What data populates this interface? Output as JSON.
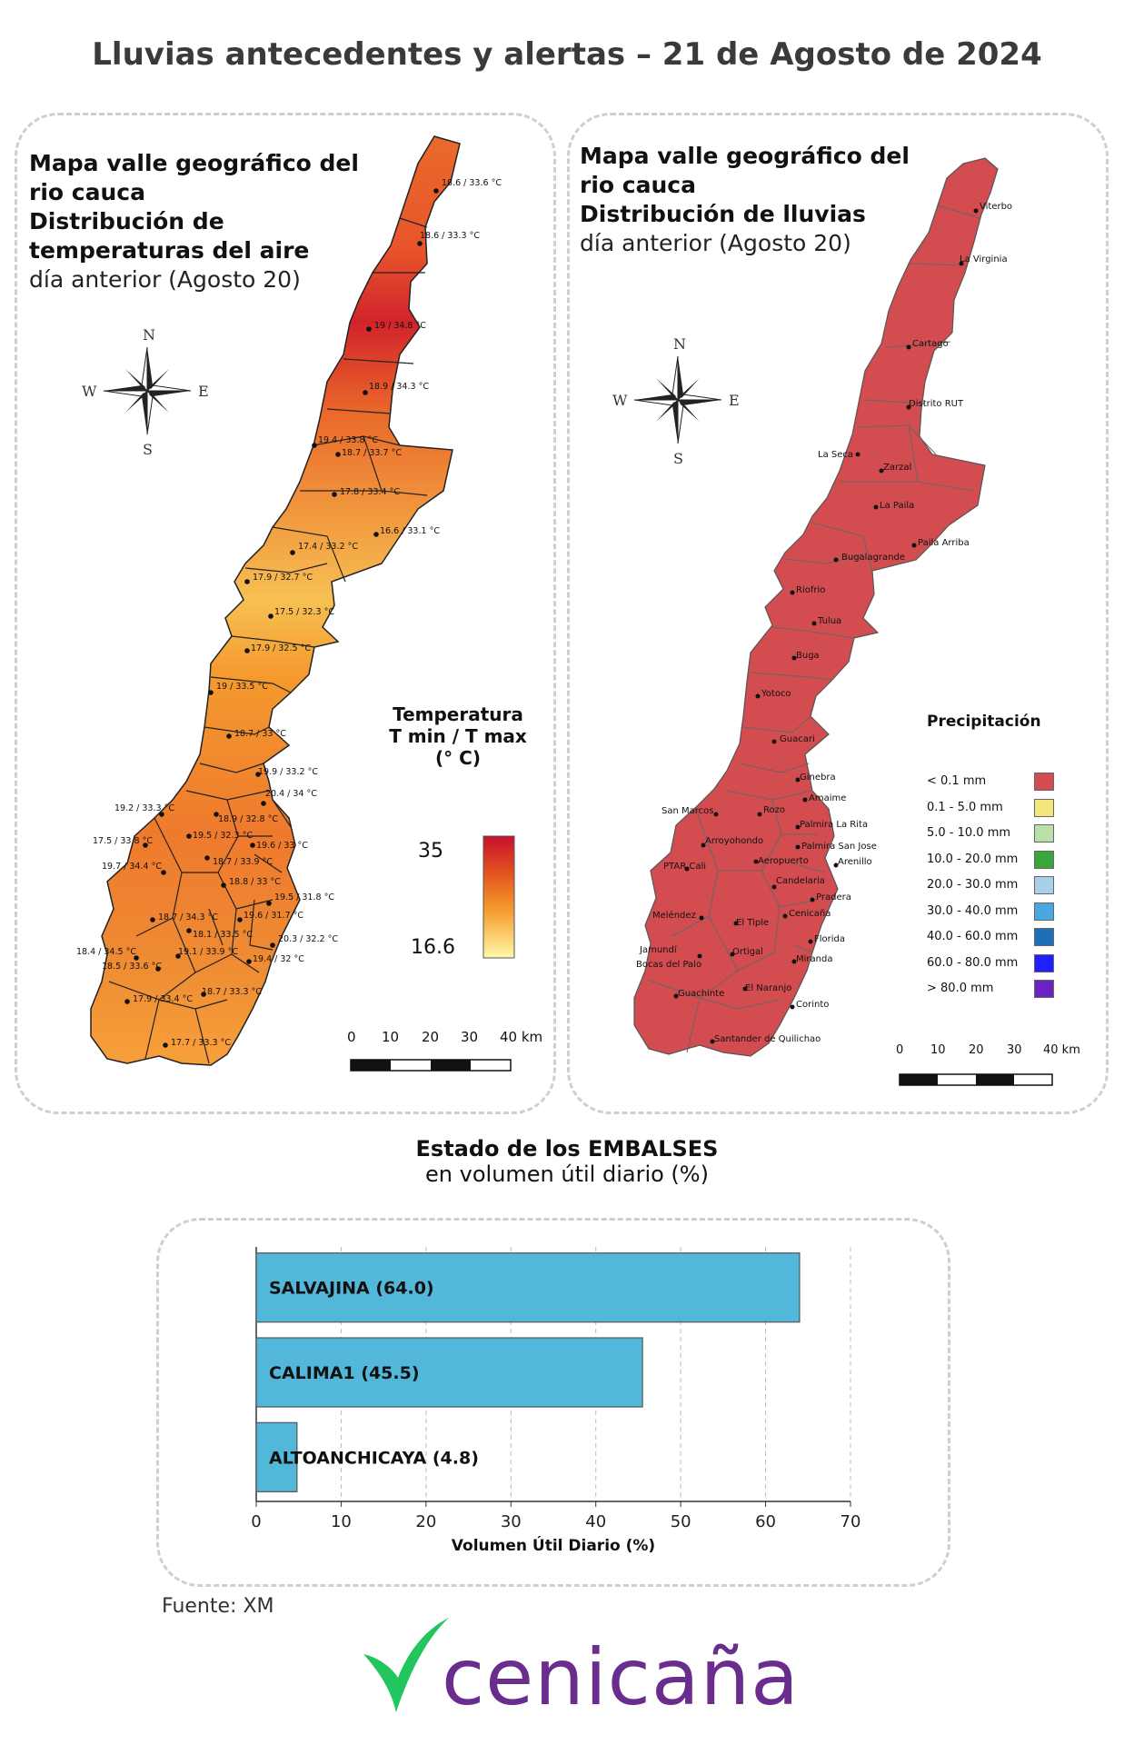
{
  "title": "Lluvias antecedentes y alertas – 21 de Agosto de 2024",
  "temperature_map": {
    "title_line1": "Mapa valle geográfico del",
    "title_line2": "rio cauca",
    "title_bold1": "Distribución de",
    "title_bold2": "temperaturas del aire",
    "subtitle": "día anterior (Agosto 20)",
    "compass": {
      "n": "N",
      "s": "S",
      "e": "E",
      "w": "W"
    },
    "legend": {
      "title1": "Temperatura",
      "title2": "T min / T max",
      "title3": "(° C)",
      "max": "35",
      "min": "16.6",
      "color_high": "#c8102e",
      "color_low": "#fff7a8"
    },
    "scale": {
      "labels": [
        "0",
        "10",
        "20",
        "30",
        "40 km"
      ]
    },
    "stations": [
      {
        "label": "18.6 / 33.6 °C"
      },
      {
        "label": "18.6 / 33.3 °C"
      },
      {
        "label": "19 / 34.8 °C"
      },
      {
        "label": "18.9 / 34.3 °C"
      },
      {
        "label": "19.4 / 33.8 °C"
      },
      {
        "label": "18.7 / 33.7 °C"
      },
      {
        "label": "17.8 / 33.4 °C"
      },
      {
        "label": "16.6 / 33.1 °C"
      },
      {
        "label": "17.4 / 33.2 °C"
      },
      {
        "label": "17.9 / 32.7 °C"
      },
      {
        "label": "17.5 / 32.3 °C"
      },
      {
        "label": "17.9 / 32.5 °C"
      },
      {
        "label": "19 / 33.5 °C"
      },
      {
        "label": "18.7 / 33 °C"
      },
      {
        "label": "19.9 / 33.2 °C"
      },
      {
        "label": "20.4 / 34 °C"
      },
      {
        "label": "19.2 / 33.3 °C"
      },
      {
        "label": "18.9 / 32.8 °C"
      },
      {
        "label": "17.5 / 33.8 °C"
      },
      {
        "label": "19.5 / 32.3 °C"
      },
      {
        "label": "19.6 / 33 °C"
      },
      {
        "label": "19.7 / 34.4 °C"
      },
      {
        "label": "18.7 / 33.9 °C"
      },
      {
        "label": "18.8 / 33 °C"
      },
      {
        "label": "19.5 / 31.8 °C"
      },
      {
        "label": "18.7 / 34.3 °C"
      },
      {
        "label": "19.6 / 31.7 °C"
      },
      {
        "label": "18.1 / 33.5 °C"
      },
      {
        "label": "20.3 / 32.2 °C"
      },
      {
        "label": "18.4 / 34.5 °C"
      },
      {
        "label": "19.1 / 33.9 °C"
      },
      {
        "label": "19.4 / 32 °C"
      },
      {
        "label": "18.5 / 33.6 °C"
      },
      {
        "label": "18.7 / 33.3 °C"
      },
      {
        "label": "17.9 / 33.4 °C"
      },
      {
        "label": "17.7 / 33.3 °C"
      }
    ]
  },
  "rain_map": {
    "title_line1": "Mapa valle geográfico del",
    "title_line2": "rio cauca",
    "title_bold": "Distribución de lluvias",
    "subtitle": "día anterior (Agosto 20)",
    "compass": {
      "n": "N",
      "s": "S",
      "e": "E",
      "w": "W"
    },
    "fill_color": "#d24c50",
    "legend": {
      "title": "Precipitación",
      "items": [
        {
          "label": "< 0.1 mm",
          "color": "#d24c50"
        },
        {
          "label": "0.1 - 5.0 mm",
          "color": "#f2e57a"
        },
        {
          "label": "5.0 - 10.0 mm",
          "color": "#b8e0a8"
        },
        {
          "label": "10.0 - 20.0 mm",
          "color": "#3aa53a"
        },
        {
          "label": "20.0 - 30.0 mm",
          "color": "#a8d0e8"
        },
        {
          "label": "30.0 - 40.0 mm",
          "color": "#4aa8e0"
        },
        {
          "label": "40.0 - 60.0 mm",
          "color": "#1f6fb8"
        },
        {
          "label": "60.0 - 80.0 mm",
          "color": "#2020ff"
        },
        {
          "label": "> 80.0 mm",
          "color": "#6a22c0"
        }
      ]
    },
    "scale": {
      "labels": [
        "0",
        "10",
        "20",
        "30",
        "40 km"
      ]
    },
    "towns": [
      "Viterbo",
      "La Virginia",
      "Cartago",
      "Distrito RUT",
      "La Seca",
      "Zarzal",
      "La Paila",
      "Paila Arriba",
      "Bugalagrande",
      "Riofrio",
      "Tulua",
      "Buga",
      "Yotoco",
      "Guacari",
      "Ginebra",
      "Amaime",
      "San Marcos",
      "Rozo",
      "Palmira La Rita",
      "Arroyohondo",
      "Palmira San Jose",
      "PTAR Cali",
      "Aeropuerto",
      "Arenillo",
      "Candelaria",
      "Pradera",
      "Meléndez",
      "El Tiple",
      "Cenicaña",
      "Jamundí",
      "Bocas del Palo",
      "Ortigal",
      "Florida",
      "Miranda",
      "Guachinte",
      "El Naranjo",
      "Corinto",
      "Santander de Quilichao"
    ]
  },
  "reservoirs": {
    "title_bold": "Estado de los EMBALSES",
    "subtitle": "en volumen útil diario (%)",
    "chart_data": {
      "type": "bar",
      "orientation": "horizontal",
      "categories": [
        "SALVAJINA (64.0)",
        "CALIMA1 (45.5)",
        "ALTOANCHICAYA (4.8)"
      ],
      "values": [
        64.0,
        45.5,
        4.8
      ],
      "xlabel": "Volumen Útil Diario (%)",
      "xlim": [
        0,
        70
      ],
      "xticks": [
        "0",
        "10",
        "20",
        "30",
        "40",
        "50",
        "60",
        "70"
      ],
      "bar_color": "#52b7d8",
      "grid": true
    }
  },
  "source": "Fuente: XM",
  "logo": {
    "text": "cenicaña",
    "color_text": "#6a2d8e",
    "color_mark": "#22c55e"
  }
}
